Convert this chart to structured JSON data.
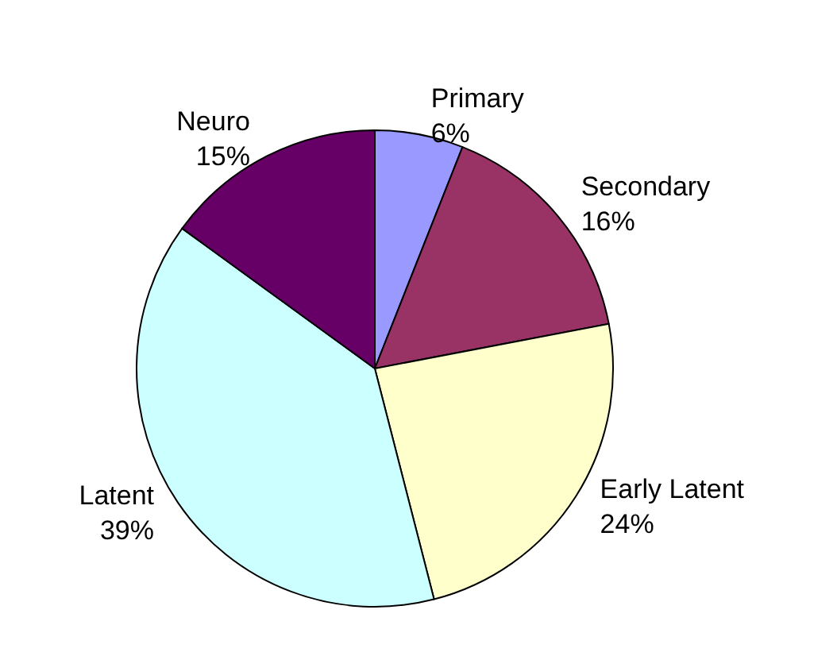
{
  "chart_data": {
    "type": "pie",
    "categories": [
      "Primary",
      "Secondary",
      "Early Latent",
      "Latent",
      "Neuro"
    ],
    "values": [
      6,
      16,
      24,
      39,
      15
    ],
    "colors": [
      "#9999ff",
      "#993366",
      "#ffffcc",
      "#ccffff",
      "#660066"
    ],
    "value_labels": [
      "6%",
      "16%",
      "24%",
      "39%",
      "15%"
    ],
    "legend": false
  }
}
